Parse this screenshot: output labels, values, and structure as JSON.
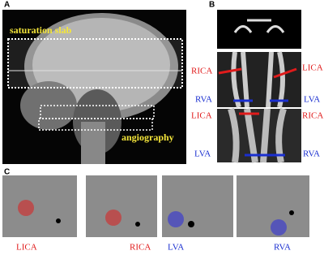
{
  "panels": {
    "a": {
      "label": "A",
      "annotations": [
        "saturation slab",
        "angiography"
      ]
    },
    "b": {
      "label": "B",
      "labels": [
        "RICA",
        "LICA",
        "RVA",
        "LVA",
        "LICA",
        "RICA",
        "LVA",
        "RVA"
      ]
    },
    "c": {
      "label": "C",
      "labels": [
        "LICA",
        "RICA",
        "LVA",
        "RVA"
      ]
    }
  }
}
